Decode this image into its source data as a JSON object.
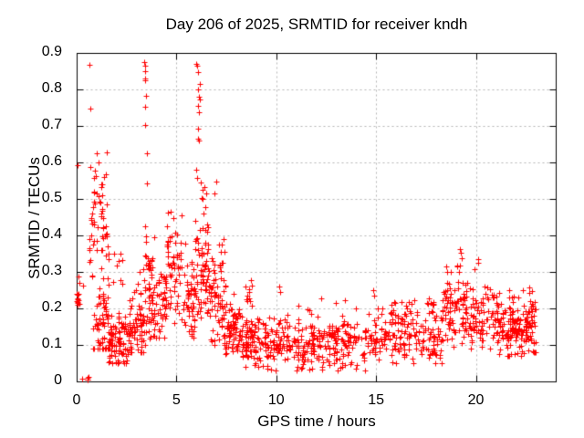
{
  "figure": {
    "background": "#ffffff"
  },
  "chart_data": {
    "type": "scatter",
    "title": "Day 206 of 2025, SRMTID for receiver kndh",
    "xlabel": "GPS time / hours",
    "ylabel": "SRMTID / TECUs",
    "xlim": [
      0,
      24
    ],
    "ylim": [
      0,
      0.9
    ],
    "xticks": [
      {
        "v": 0,
        "label": "0"
      },
      {
        "v": 5,
        "label": "5"
      },
      {
        "v": 10,
        "label": "10"
      },
      {
        "v": 15,
        "label": "15"
      },
      {
        "v": 20,
        "label": "20"
      }
    ],
    "yticks": [
      {
        "v": 0,
        "label": "0"
      },
      {
        "v": 0.1,
        "label": "0.1"
      },
      {
        "v": 0.2,
        "label": "0.2"
      },
      {
        "v": 0.3,
        "label": "0.3"
      },
      {
        "v": 0.4,
        "label": "0.4"
      },
      {
        "v": 0.5,
        "label": "0.5"
      },
      {
        "v": 0.6,
        "label": "0.6"
      },
      {
        "v": 0.7,
        "label": "0.7"
      },
      {
        "v": 0.8,
        "label": "0.8"
      },
      {
        "v": 0.9,
        "label": "0.9"
      }
    ],
    "grid": true,
    "legend": "none",
    "marker": {
      "shape": "plus",
      "size": 7,
      "color": "#ff0000"
    },
    "grid_color": "#b5b5b5",
    "axis_color": "#000000",
    "text_color": "#000000",
    "seed": 1234,
    "points": [
      [
        0.04,
        0.237
      ],
      [
        0.04,
        0.225
      ],
      [
        0.06,
        0.215
      ],
      [
        0.05,
        0.21
      ],
      [
        0.07,
        0.222
      ],
      [
        0.05,
        0.228
      ],
      [
        0.1,
        0.287
      ],
      [
        0.15,
        0.27
      ],
      [
        0.3,
        0.262
      ],
      [
        0.05,
        0.593
      ],
      [
        0.28,
        0.008
      ],
      [
        0.54,
        0.006
      ],
      [
        0.56,
        0.006
      ],
      [
        0.55,
        0.01
      ],
      [
        0.58,
        0.012
      ],
      [
        0.64,
        0.868
      ],
      [
        0.68,
        0.747
      ],
      [
        0.68,
        0.588
      ],
      [
        1.02,
        0.625
      ],
      [
        1.08,
        0.6
      ],
      [
        3.4,
        0.875
      ],
      [
        3.42,
        0.866
      ],
      [
        3.45,
        0.851
      ],
      [
        3.42,
        0.829
      ],
      [
        3.44,
        0.826
      ],
      [
        3.47,
        0.782
      ],
      [
        3.42,
        0.752
      ],
      [
        3.45,
        0.702
      ],
      [
        3.5,
        0.626
      ],
      [
        3.53,
        0.542
      ],
      [
        5.97,
        0.87
      ],
      [
        6.02,
        0.866
      ],
      [
        6.06,
        0.848
      ],
      [
        6.18,
        0.814
      ],
      [
        6.1,
        0.801
      ],
      [
        6.14,
        0.78
      ],
      [
        6.15,
        0.772
      ],
      [
        6.1,
        0.754
      ],
      [
        6.14,
        0.737
      ],
      [
        6.06,
        0.693
      ],
      [
        6.1,
        0.664
      ],
      [
        6.13,
        0.66
      ],
      [
        5.97,
        0.579
      ],
      [
        6.04,
        0.558
      ],
      [
        6.22,
        0.545
      ],
      [
        6.3,
        0.525
      ],
      [
        6.28,
        0.502
      ],
      [
        6.45,
        0.478
      ],
      [
        6.9,
        0.515
      ],
      [
        6.98,
        0.548
      ],
      [
        10.15,
        0.26
      ],
      [
        10.2,
        0.245
      ],
      [
        13.0,
        0.215
      ],
      [
        14.85,
        0.25
      ],
      [
        14.9,
        0.235
      ],
      [
        18.75,
        0.3
      ],
      [
        19.05,
        0.315
      ],
      [
        19.2,
        0.362
      ],
      [
        19.25,
        0.352
      ],
      [
        19.3,
        0.338
      ],
      [
        20.1,
        0.335
      ],
      [
        20.12,
        0.325
      ]
    ],
    "clusters": [
      {
        "x0": 0.0,
        "x1": 0.15,
        "n": 5,
        "mode": 0.22,
        "spread": 0.015,
        "ymin": 0.2,
        "ymax": 0.24
      },
      {
        "x0": 0.62,
        "x1": 0.8,
        "n": 12,
        "mode": 0.36,
        "spread": 0.08,
        "ymin": 0.26,
        "ymax": 0.46
      },
      {
        "x0": 0.8,
        "x1": 1.6,
        "n": 65,
        "mode": 0.16,
        "spread": 0.09,
        "ymin": 0.09,
        "ymax": 0.36
      },
      {
        "x0": 0.78,
        "x1": 1.55,
        "n": 45,
        "mode": 0.47,
        "spread": 0.1,
        "ymin": 0.36,
        "ymax": 0.63
      },
      {
        "x0": 1.6,
        "x1": 2.6,
        "n": 85,
        "mode": 0.11,
        "spread": 0.05,
        "ymin": 0.05,
        "ymax": 0.19
      },
      {
        "x0": 1.6,
        "x1": 2.3,
        "n": 10,
        "mode": 0.3,
        "spread": 0.05,
        "ymin": 0.26,
        "ymax": 0.35
      },
      {
        "x0": 2.6,
        "x1": 3.35,
        "n": 75,
        "mode": 0.15,
        "spread": 0.07,
        "ymin": 0.08,
        "ymax": 0.3
      },
      {
        "x0": 3.3,
        "x1": 3.8,
        "n": 55,
        "mode": 0.25,
        "spread": 0.12,
        "ymin": 0.1,
        "ymax": 0.52
      },
      {
        "x0": 3.8,
        "x1": 4.5,
        "n": 55,
        "mode": 0.21,
        "spread": 0.08,
        "ymin": 0.12,
        "ymax": 0.4
      },
      {
        "x0": 4.5,
        "x1": 5.3,
        "n": 60,
        "mode": 0.28,
        "spread": 0.1,
        "ymin": 0.16,
        "ymax": 0.47
      },
      {
        "x0": 5.3,
        "x1": 5.9,
        "n": 50,
        "mode": 0.21,
        "spread": 0.08,
        "ymin": 0.12,
        "ymax": 0.38
      },
      {
        "x0": 5.9,
        "x1": 6.6,
        "n": 75,
        "mode": 0.3,
        "spread": 0.12,
        "ymin": 0.14,
        "ymax": 0.55
      },
      {
        "x0": 6.6,
        "x1": 7.4,
        "n": 70,
        "mode": 0.23,
        "spread": 0.1,
        "ymin": 0.1,
        "ymax": 0.45
      },
      {
        "x0": 7.4,
        "x1": 8.2,
        "n": 75,
        "mode": 0.14,
        "spread": 0.06,
        "ymin": 0.06,
        "ymax": 0.28
      },
      {
        "x0": 8.2,
        "x1": 9.0,
        "n": 70,
        "mode": 0.1,
        "spread": 0.05,
        "ymin": 0.04,
        "ymax": 0.2
      },
      {
        "x0": 8.45,
        "x1": 8.8,
        "n": 12,
        "mode": 0.24,
        "spread": 0.06,
        "ymin": 0.16,
        "ymax": 0.31
      },
      {
        "x0": 9.0,
        "x1": 15.0,
        "n": 340,
        "mode": 0.1,
        "spread": 0.05,
        "ymin": 0.03,
        "ymax": 0.23
      },
      {
        "x0": 15.0,
        "x1": 18.3,
        "n": 185,
        "mode": 0.13,
        "spread": 0.06,
        "ymin": 0.05,
        "ymax": 0.25
      },
      {
        "x0": 18.3,
        "x1": 19.6,
        "n": 95,
        "mode": 0.19,
        "spread": 0.07,
        "ymin": 0.09,
        "ymax": 0.33
      },
      {
        "x0": 19.6,
        "x1": 21.5,
        "n": 115,
        "mode": 0.16,
        "spread": 0.07,
        "ymin": 0.06,
        "ymax": 0.31
      },
      {
        "x0": 21.5,
        "x1": 22.55,
        "n": 105,
        "mode": 0.14,
        "spread": 0.06,
        "ymin": 0.07,
        "ymax": 0.28
      },
      {
        "x0": 22.55,
        "x1": 23.0,
        "n": 45,
        "mode": 0.16,
        "spread": 0.06,
        "ymin": 0.08,
        "ymax": 0.27
      }
    ]
  }
}
